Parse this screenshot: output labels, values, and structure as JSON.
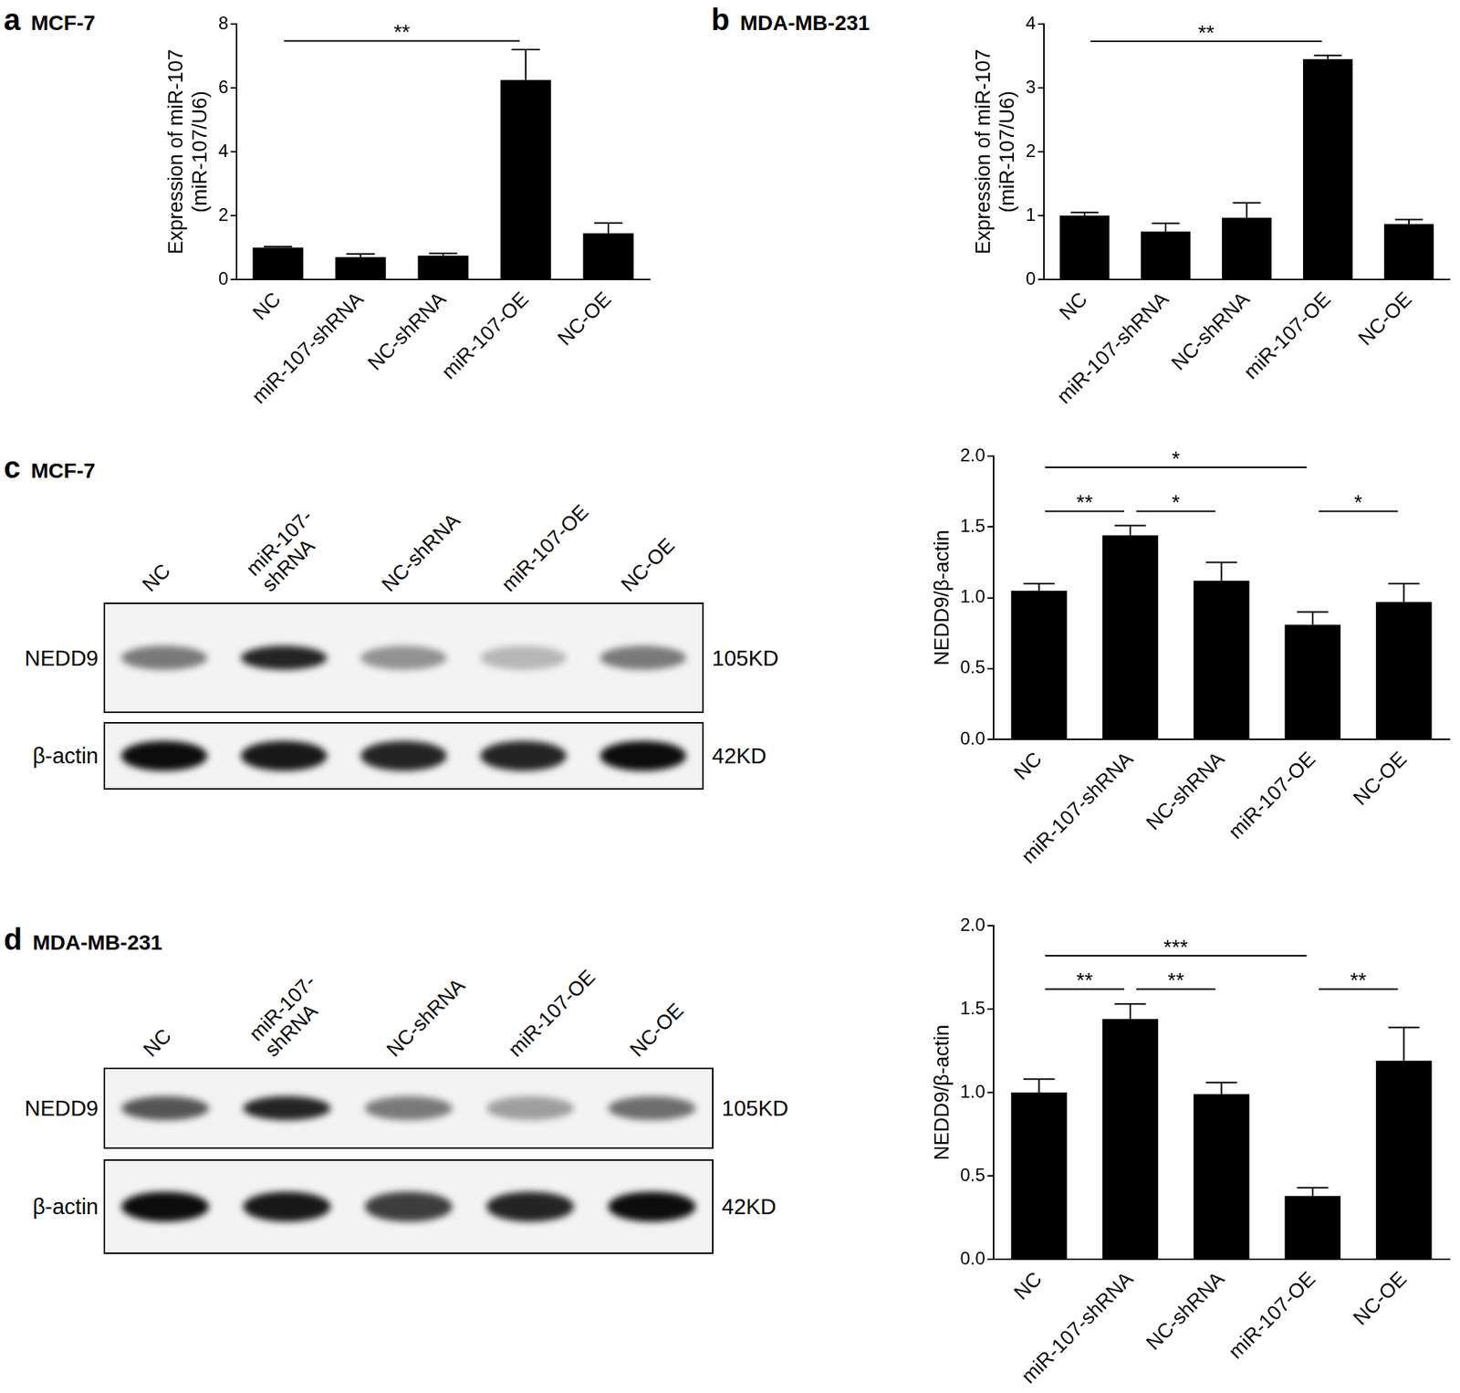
{
  "chart_data": [
    {
      "type": "bar",
      "panel": "a",
      "title": "MCF-7",
      "y_label": [
        "Expression of miR-107",
        "(miR-107/U6)"
      ],
      "categories": [
        "NC",
        "miR-107-shRNA",
        "NC-shRNA",
        "miR-107-OE",
        "NC-OE"
      ],
      "values": [
        1.0,
        0.7,
        0.75,
        6.25,
        1.45
      ],
      "errors": [
        0.03,
        0.1,
        0.07,
        0.95,
        0.32
      ],
      "color": "#000000",
      "ylim": [
        0,
        8
      ],
      "yticks": [
        0,
        2,
        4,
        6,
        8
      ],
      "grid": false,
      "significance": [
        {
          "from": "NC",
          "to": "miR-107-OE",
          "y": 7.47,
          "label": "**"
        }
      ]
    },
    {
      "type": "bar",
      "panel": "b",
      "title": "MDA-MB-231",
      "y_label": [
        "Expression of miR-107",
        "(miR-107/U6)"
      ],
      "categories": [
        "NC",
        "miR-107-shRNA",
        "NC-shRNA",
        "miR-107-OE",
        "NC-OE"
      ],
      "values": [
        1.0,
        0.75,
        0.97,
        3.45,
        0.87
      ],
      "errors": [
        0.05,
        0.13,
        0.23,
        0.06,
        0.07
      ],
      "color": "#000000",
      "ylim": [
        0,
        4
      ],
      "yticks": [
        0,
        1,
        2,
        3,
        4
      ],
      "grid": false,
      "significance": [
        {
          "from": "NC",
          "to": "miR-107-OE",
          "y": 3.73,
          "label": "**"
        }
      ]
    },
    {
      "type": "bar",
      "panel": "c",
      "y_label": "NEDD9/β-actin",
      "categories": [
        "NC",
        "miR-107-shRNA",
        "NC-shRNA",
        "miR-107-OE",
        "NC-OE"
      ],
      "values": [
        1.05,
        1.44,
        1.12,
        0.81,
        0.97
      ],
      "errors": [
        0.05,
        0.07,
        0.13,
        0.09,
        0.13
      ],
      "color": "#000000",
      "ylim": [
        0,
        2
      ],
      "yticks": [
        {
          "value": 0,
          "label": "0.0"
        },
        {
          "value": 0.5,
          "label": "0.5"
        },
        {
          "value": 1,
          "label": "1.0"
        },
        {
          "value": 1.5,
          "label": "1.5"
        },
        {
          "value": 2,
          "label": "2.0"
        }
      ],
      "grid": false,
      "significance": [
        {
          "from": "NC",
          "to": "miR-107-OE",
          "y": 1.92,
          "label": "*"
        },
        {
          "from": "NC",
          "to": "miR-107-shRNA",
          "y": 1.61,
          "label": "**"
        },
        {
          "from": "miR-107-shRNA",
          "to": "NC-shRNA",
          "y": 1.61,
          "label": "*"
        },
        {
          "from": "miR-107-OE",
          "to": "NC-OE",
          "y": 1.61,
          "label": "*"
        }
      ]
    },
    {
      "type": "bar",
      "panel": "d",
      "y_label": "NEDD9/β-actin",
      "categories": [
        "NC",
        "miR-107-shRNA",
        "NC-shRNA",
        "miR-107-OE",
        "NC-OE"
      ],
      "values": [
        1.0,
        1.44,
        0.99,
        0.38,
        1.19
      ],
      "errors": [
        0.08,
        0.09,
        0.07,
        0.05,
        0.2
      ],
      "color": "#000000",
      "ylim": [
        0,
        2
      ],
      "yticks": [
        {
          "value": 0,
          "label": "0.0"
        },
        {
          "value": 0.5,
          "label": "0.5"
        },
        {
          "value": 1,
          "label": "1.0"
        },
        {
          "value": 1.5,
          "label": "1.5"
        },
        {
          "value": 2,
          "label": "2.0"
        }
      ],
      "grid": false,
      "significance": [
        {
          "from": "NC",
          "to": "miR-107-OE",
          "y": 1.82,
          "label": "***"
        },
        {
          "from": "NC",
          "to": "miR-107-shRNA",
          "y": 1.62,
          "label": "**"
        },
        {
          "from": "miR-107-shRNA",
          "to": "NC-shRNA",
          "y": 1.62,
          "label": "**"
        },
        {
          "from": "miR-107-OE",
          "to": "NC-OE",
          "y": 1.62,
          "label": "**"
        }
      ]
    }
  ],
  "blots": [
    {
      "panel": "c",
      "title": "MCF-7",
      "lanes": [
        "NC",
        [
          "miR-107-",
          "shRNA"
        ],
        "NC-shRNA",
        "miR-107-OE",
        "NC-OE"
      ],
      "rows": [
        {
          "label": "NEDD9",
          "size": "105KD",
          "bands": [
            0.5,
            0.85,
            0.4,
            0.25,
            0.5
          ]
        },
        {
          "label": "β-actin",
          "size": "42KD",
          "bands": [
            0.95,
            0.9,
            0.85,
            0.85,
            0.95
          ]
        }
      ]
    },
    {
      "panel": "d",
      "title": "MDA-MB-231",
      "lanes": [
        "NC",
        [
          "miR-107-",
          "shRNA"
        ],
        "NC-shRNA",
        "miR-107-OE",
        "NC-OE"
      ],
      "rows": [
        {
          "label": "NEDD9",
          "size": "105KD",
          "bands": [
            0.65,
            0.85,
            0.5,
            0.35,
            0.55
          ]
        },
        {
          "label": "β-actin",
          "size": "42KD",
          "bands": [
            0.95,
            0.9,
            0.75,
            0.85,
            0.95
          ]
        }
      ]
    }
  ]
}
